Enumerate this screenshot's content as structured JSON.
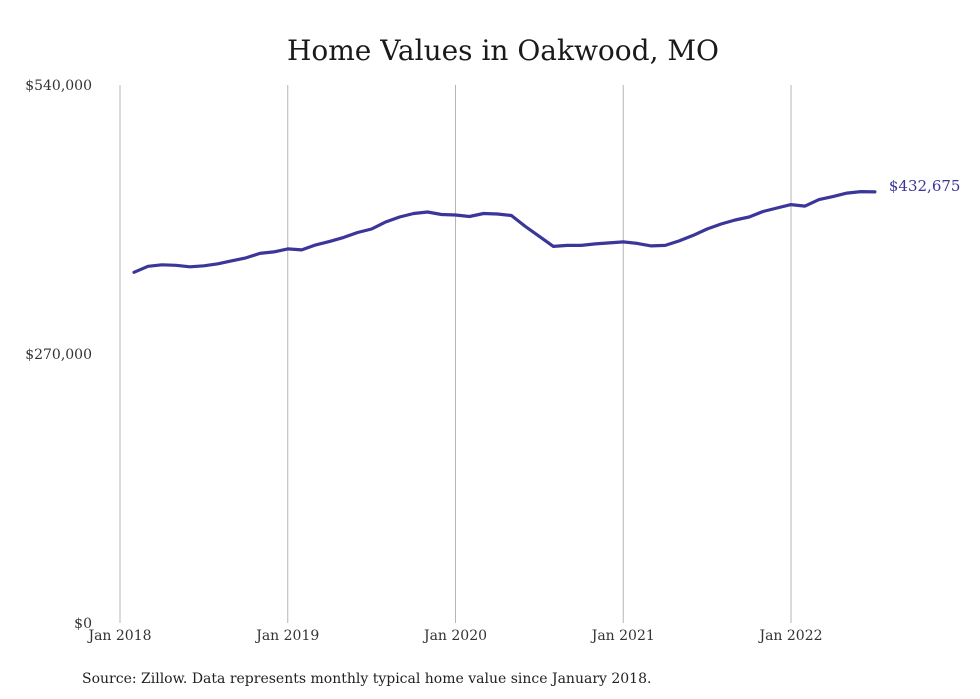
{
  "chart_data": {
    "type": "line",
    "title": "Home Values in Oakwood, MO",
    "xlabel": "",
    "ylabel": "",
    "ylim": [
      0,
      540000
    ],
    "y_ticks": [
      "$0",
      "$270,000",
      "$540,000"
    ],
    "y_tick_values": [
      0,
      270000,
      540000
    ],
    "x_ticks": [
      "Jan 2018",
      "Jan 2019",
      "Jan 2020",
      "Jan 2021",
      "Jan 2022"
    ],
    "x_tick_dates": [
      "2018-01",
      "2019-01",
      "2020-01",
      "2021-01",
      "2022-01"
    ],
    "grid": "vertical",
    "line_color": "#3b3699",
    "series": [
      {
        "x": [
          "2018-02",
          "2018-03",
          "2018-04",
          "2018-05",
          "2018-06",
          "2018-07",
          "2018-08",
          "2018-09",
          "2018-10",
          "2018-11",
          "2018-12",
          "2019-01",
          "2019-02",
          "2019-03",
          "2019-04",
          "2019-05",
          "2019-06",
          "2019-07",
          "2019-08",
          "2019-09",
          "2019-10",
          "2019-11",
          "2019-12",
          "2020-01",
          "2020-02",
          "2020-03",
          "2020-04",
          "2020-05",
          "2020-06",
          "2020-07",
          "2020-08",
          "2020-09",
          "2020-10",
          "2020-11",
          "2020-12",
          "2021-01",
          "2021-02",
          "2021-03",
          "2021-04",
          "2021-05",
          "2021-06",
          "2021-07",
          "2021-08",
          "2021-09",
          "2021-10",
          "2021-11",
          "2021-12",
          "2022-01",
          "2022-02",
          "2022-03",
          "2022-04",
          "2022-05",
          "2022-06",
          "2022-07"
        ],
        "values": [
          352000,
          358000,
          359500,
          359000,
          357500,
          358500,
          360500,
          363500,
          366500,
          371000,
          372500,
          375500,
          374500,
          379500,
          383000,
          387000,
          392000,
          395500,
          402500,
          407500,
          411000,
          412500,
          410000,
          409500,
          408000,
          411000,
          410500,
          409000,
          398000,
          388000,
          378000,
          379000,
          379000,
          380500,
          381500,
          382500,
          381000,
          378500,
          379000,
          383500,
          389000,
          395500,
          400500,
          404500,
          407500,
          413000,
          416500,
          420000,
          418500,
          425000,
          428000,
          431500,
          433000,
          432675
        ]
      }
    ],
    "end_label": "$432,675"
  },
  "footer": {
    "source": "Source: Zillow. Data represents monthly typical home value since January 2018."
  }
}
